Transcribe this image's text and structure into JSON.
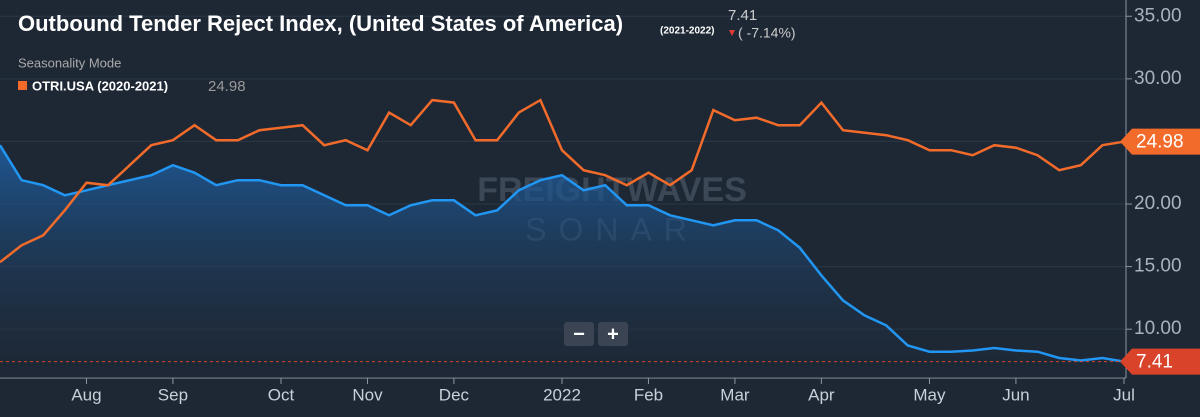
{
  "chart_data": {
    "type": "line",
    "title": "Outbound Tender Reject Index, (United States of America)",
    "mode_label": "Seasonality Mode",
    "change_label": "( -7.14%)",
    "watermark": [
      "FREIGHTWAVES",
      "SONAR"
    ],
    "zoom_controls": [
      "−",
      "+"
    ],
    "categories": [
      null,
      null,
      null,
      null,
      "Aug",
      null,
      null,
      null,
      "Sep",
      null,
      null,
      null,
      null,
      "Oct",
      null,
      null,
      null,
      "Nov",
      null,
      null,
      null,
      "Dec",
      null,
      null,
      null,
      null,
      "2022",
      null,
      null,
      null,
      "Feb",
      null,
      null,
      null,
      "Mar",
      null,
      null,
      null,
      "Apr",
      null,
      null,
      null,
      null,
      "May",
      null,
      null,
      null,
      "Jun",
      null,
      null,
      null,
      null,
      "Jul"
    ],
    "series": [
      {
        "name": "(2021-2022)",
        "color": "#2196f3",
        "area": true,
        "values": [
          24.7,
          21.9,
          21.5,
          20.7,
          21.1,
          21.5,
          21.9,
          22.3,
          23.1,
          22.5,
          21.5,
          21.9,
          21.9,
          21.5,
          21.5,
          20.7,
          19.9,
          19.9,
          19.1,
          19.9,
          20.3,
          20.3,
          19.1,
          19.5,
          21.1,
          21.9,
          22.3,
          21.1,
          21.5,
          19.9,
          19.9,
          19.1,
          18.7,
          18.3,
          18.7,
          18.7,
          17.9,
          16.5,
          14.3,
          12.3,
          11.1,
          10.3,
          8.7,
          8.2,
          8.2,
          8.3,
          8.5,
          8.3,
          8.2,
          7.7,
          7.5,
          7.7,
          7.41
        ],
        "tag_color": "#d8432a"
      },
      {
        "name": "OTRI.USA (2020-2021)",
        "color": "#f26b2a",
        "values": [
          15.35,
          16.7,
          17.5,
          19.5,
          21.7,
          21.5,
          23.1,
          24.7,
          25.1,
          26.3,
          25.1,
          25.1,
          25.9,
          26.1,
          26.3,
          24.7,
          25.1,
          24.3,
          27.3,
          26.3,
          28.3,
          28.1,
          25.1,
          25.1,
          27.3,
          28.3,
          24.3,
          22.7,
          22.3,
          21.5,
          22.5,
          21.5,
          22.7,
          27.5,
          26.7,
          26.9,
          26.3,
          26.3,
          28.1,
          25.9,
          25.7,
          25.5,
          25.1,
          24.3,
          24.3,
          23.9,
          24.7,
          24.5,
          23.9,
          22.7,
          23.1,
          24.7,
          24.98
        ],
        "tag_color": "#f26b2a"
      }
    ],
    "ylim": [
      6.1,
      36.3
    ],
    "yticks": [
      {
        "value": 10,
        "label": "10.00"
      },
      {
        "value": 15,
        "label": "15.00"
      },
      {
        "value": 20,
        "label": "20.00"
      },
      {
        "value": 25,
        "label": "25.00"
      },
      {
        "value": 30,
        "label": "30.00"
      },
      {
        "value": 35,
        "label": "35.00"
      }
    ],
    "grid": true
  }
}
